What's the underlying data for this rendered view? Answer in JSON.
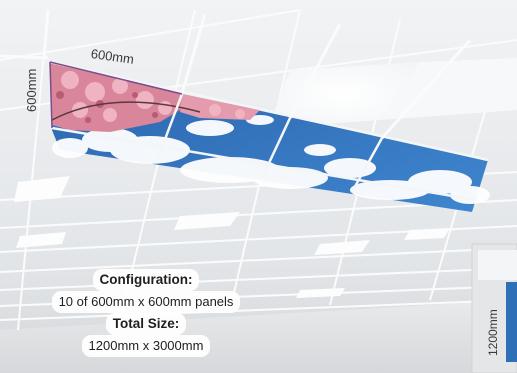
{
  "labels": {
    "top_dimension": "600mm",
    "left_dimension": "600mm",
    "right_dimension": "1200mm"
  },
  "caption": {
    "config_heading": "Configuration:",
    "config_value": "10 of 600mm x 600mm panels",
    "size_heading": "Total Size:",
    "size_value": "1200mm x 3000mm"
  },
  "colors": {
    "ceiling": "#e9ecef",
    "grid": "#f8f9fa",
    "sky": "#2f6fb8",
    "cloud": "#ffffff",
    "blossom": "#d9869a",
    "dimension_line": "#7a4d8c"
  }
}
